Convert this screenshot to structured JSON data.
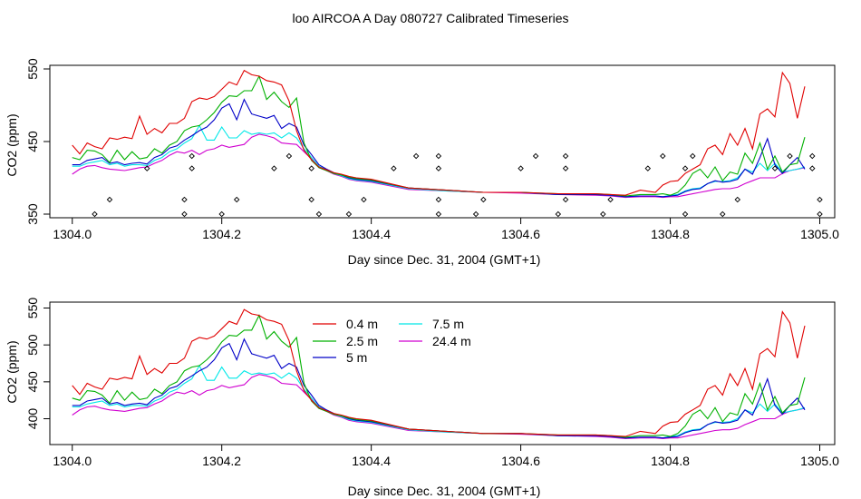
{
  "title": "loo AIRCOA A  Day 080727  Calibrated Timeseries",
  "colors": {
    "0.4 m": "#e00000",
    "2.5 m": "#00b000",
    "5 m": "#0000c8",
    "7.5 m": "#00e8e8",
    "24.4 m": "#d000d0"
  },
  "chart_data": [
    {
      "type": "line",
      "xlabel": "Day since Dec. 31, 2004 (GMT+1)",
      "ylabel": "CO2 (ppm)",
      "xlim": [
        1303.97,
        1305.02
      ],
      "ylim": [
        345,
        555
      ],
      "xticks": [
        "1304.0",
        "1304.2",
        "1304.4",
        "1304.6",
        "1304.8",
        "1305.0"
      ],
      "yticks": [
        "350",
        "450",
        "550"
      ],
      "series": [
        {
          "key": "0.4 m",
          "x": [
            1304.0,
            1304.01,
            1304.02,
            1304.03,
            1304.04,
            1304.05,
            1304.06,
            1304.07,
            1304.08,
            1304.09,
            1304.1,
            1304.11,
            1304.12,
            1304.13,
            1304.14,
            1304.15,
            1304.16,
            1304.17,
            1304.18,
            1304.19,
            1304.2,
            1304.21,
            1304.22,
            1304.23,
            1304.24,
            1304.25,
            1304.26,
            1304.27,
            1304.28,
            1304.29,
            1304.3,
            1304.31,
            1304.32,
            1304.33,
            1304.34,
            1304.35,
            1304.36,
            1304.37,
            1304.38,
            1304.4,
            1304.45,
            1304.5,
            1304.55,
            1304.6,
            1304.65,
            1304.7,
            1304.72,
            1304.74,
            1304.76,
            1304.78,
            1304.79,
            1304.8,
            1304.81,
            1304.82,
            1304.83,
            1304.84,
            1304.85,
            1304.86,
            1304.87,
            1304.88,
            1304.89,
            1304.9,
            1304.91,
            1304.92,
            1304.93,
            1304.94,
            1304.95,
            1304.96,
            1304.97,
            1304.98,
            1304.99
          ],
          "y": [
            445,
            433,
            448,
            443,
            440,
            455,
            453,
            456,
            454,
            485,
            460,
            468,
            462,
            475,
            475,
            482,
            505,
            510,
            508,
            512,
            522,
            532,
            528,
            548,
            542,
            540,
            534,
            532,
            528,
            506,
            465,
            438,
            425,
            415,
            411,
            407,
            405,
            402,
            400,
            398,
            386,
            383,
            380,
            380,
            378,
            378,
            377,
            376,
            383,
            380,
            390,
            395,
            396,
            406,
            412,
            418,
            440,
            445,
            432,
            461,
            445,
            468,
            440,
            488,
            495,
            484,
            545,
            530,
            482,
            526,
            null
          ]
        },
        {
          "key": "2.5 m",
          "x": [
            1304.0,
            1304.01,
            1304.02,
            1304.03,
            1304.04,
            1304.05,
            1304.06,
            1304.07,
            1304.08,
            1304.09,
            1304.1,
            1304.11,
            1304.12,
            1304.13,
            1304.14,
            1304.15,
            1304.16,
            1304.17,
            1304.18,
            1304.19,
            1304.2,
            1304.21,
            1304.22,
            1304.23,
            1304.24,
            1304.25,
            1304.26,
            1304.27,
            1304.28,
            1304.29,
            1304.3,
            1304.31,
            1304.32,
            1304.33,
            1304.34,
            1304.35,
            1304.36,
            1304.37,
            1304.38,
            1304.4,
            1304.45,
            1304.5,
            1304.55,
            1304.6,
            1304.65,
            1304.7,
            1304.72,
            1304.74,
            1304.76,
            1304.78,
            1304.79,
            1304.8,
            1304.81,
            1304.82,
            1304.83,
            1304.84,
            1304.85,
            1304.86,
            1304.87,
            1304.88,
            1304.89,
            1304.9,
            1304.91,
            1304.92,
            1304.93,
            1304.94,
            1304.95,
            1304.96,
            1304.97,
            1304.98,
            1304.99
          ],
          "y": [
            428,
            425,
            438,
            437,
            432,
            421,
            438,
            425,
            436,
            426,
            428,
            440,
            434,
            445,
            450,
            465,
            470,
            472,
            480,
            490,
            504,
            513,
            512,
            520,
            520,
            540,
            508,
            518,
            505,
            497,
            510,
            448,
            424,
            414,
            410,
            406,
            404,
            401,
            399,
            397,
            386,
            383,
            380,
            380,
            378,
            378,
            377,
            375,
            377,
            377,
            378,
            376,
            380,
            390,
            406,
            412,
            400,
            415,
            396,
            408,
            405,
            434,
            420,
            448,
            412,
            430,
            408,
            418,
            420,
            456,
            null
          ]
        },
        {
          "key": "5 m",
          "x": [
            1304.0,
            1304.01,
            1304.02,
            1304.03,
            1304.04,
            1304.05,
            1304.06,
            1304.07,
            1304.08,
            1304.09,
            1304.1,
            1304.11,
            1304.12,
            1304.13,
            1304.14,
            1304.15,
            1304.16,
            1304.17,
            1304.18,
            1304.19,
            1304.2,
            1304.21,
            1304.22,
            1304.23,
            1304.24,
            1304.25,
            1304.26,
            1304.27,
            1304.28,
            1304.29,
            1304.3,
            1304.31,
            1304.32,
            1304.33,
            1304.34,
            1304.35,
            1304.36,
            1304.37,
            1304.38,
            1304.4,
            1304.45,
            1304.5,
            1304.55,
            1304.6,
            1304.65,
            1304.7,
            1304.72,
            1304.74,
            1304.76,
            1304.78,
            1304.79,
            1304.8,
            1304.81,
            1304.82,
            1304.83,
            1304.84,
            1304.85,
            1304.86,
            1304.87,
            1304.88,
            1304.89,
            1304.9,
            1304.91,
            1304.92,
            1304.93,
            1304.94,
            1304.95,
            1304.96,
            1304.97,
            1304.98,
            1304.99
          ],
          "y": [
            418,
            418,
            424,
            426,
            428,
            420,
            422,
            418,
            420,
            421,
            419,
            428,
            432,
            441,
            444,
            452,
            458,
            465,
            470,
            480,
            496,
            502,
            480,
            508,
            488,
            485,
            482,
            486,
            468,
            475,
            470,
            445,
            432,
            418,
            412,
            407,
            404,
            400,
            398,
            396,
            386,
            383,
            380,
            380,
            377,
            377,
            376,
            374,
            375,
            375,
            374,
            375,
            376,
            381,
            384,
            385,
            392,
            396,
            394,
            395,
            398,
            412,
            405,
            428,
            454,
            418,
            406,
            418,
            428,
            412,
            null
          ]
        },
        {
          "key": "7.5 m",
          "x": [
            1304.0,
            1304.01,
            1304.02,
            1304.03,
            1304.04,
            1304.05,
            1304.06,
            1304.07,
            1304.08,
            1304.09,
            1304.1,
            1304.11,
            1304.12,
            1304.13,
            1304.14,
            1304.15,
            1304.16,
            1304.17,
            1304.18,
            1304.19,
            1304.2,
            1304.21,
            1304.22,
            1304.23,
            1304.24,
            1304.25,
            1304.26,
            1304.27,
            1304.28,
            1304.29,
            1304.3,
            1304.31,
            1304.32,
            1304.33,
            1304.34,
            1304.35,
            1304.36,
            1304.37,
            1304.38,
            1304.4,
            1304.45,
            1304.5,
            1304.55,
            1304.6,
            1304.65,
            1304.7,
            1304.72,
            1304.74,
            1304.76,
            1304.78,
            1304.79,
            1304.8,
            1304.81,
            1304.82,
            1304.83,
            1304.84,
            1304.85,
            1304.86,
            1304.87,
            1304.88,
            1304.89,
            1304.9,
            1304.91,
            1304.92,
            1304.93,
            1304.94,
            1304.95,
            1304.96,
            1304.97,
            1304.98,
            1304.99
          ],
          "y": [
            416,
            416,
            420,
            422,
            424,
            418,
            420,
            416,
            418,
            418,
            417,
            424,
            428,
            436,
            440,
            448,
            454,
            472,
            452,
            452,
            470,
            455,
            455,
            465,
            460,
            462,
            460,
            462,
            455,
            462,
            455,
            440,
            428,
            416,
            411,
            406,
            403,
            399,
            397,
            395,
            385,
            382,
            380,
            380,
            377,
            377,
            376,
            374,
            375,
            375,
            374,
            376,
            377,
            382,
            385,
            386,
            392,
            395,
            395,
            396,
            400,
            412,
            408,
            420,
            410,
            420,
            408,
            410,
            412,
            415,
            null
          ]
        },
        {
          "key": "24.4 m",
          "x": [
            1304.0,
            1304.01,
            1304.02,
            1304.03,
            1304.04,
            1304.05,
            1304.06,
            1304.07,
            1304.08,
            1304.09,
            1304.1,
            1304.11,
            1304.12,
            1304.13,
            1304.14,
            1304.15,
            1304.16,
            1304.17,
            1304.18,
            1304.19,
            1304.2,
            1304.21,
            1304.22,
            1304.23,
            1304.24,
            1304.25,
            1304.26,
            1304.27,
            1304.28,
            1304.29,
            1304.3,
            1304.31,
            1304.32,
            1304.33,
            1304.34,
            1304.35,
            1304.36,
            1304.37,
            1304.38,
            1304.4,
            1304.45,
            1304.5,
            1304.55,
            1304.6,
            1304.65,
            1304.7,
            1304.72,
            1304.74,
            1304.76,
            1304.78,
            1304.79,
            1304.8,
            1304.81,
            1304.82,
            1304.83,
            1304.84,
            1304.85,
            1304.86,
            1304.87,
            1304.88,
            1304.89,
            1304.9,
            1304.91,
            1304.92,
            1304.93,
            1304.94,
            1304.95,
            1304.96,
            1304.97,
            1304.98,
            1304.99
          ],
          "y": [
            405,
            412,
            416,
            417,
            414,
            412,
            411,
            410,
            412,
            414,
            415,
            420,
            424,
            431,
            436,
            434,
            438,
            432,
            438,
            440,
            445,
            442,
            444,
            446,
            456,
            460,
            458,
            455,
            448,
            447,
            446,
            436,
            426,
            414,
            410,
            405,
            402,
            398,
            396,
            394,
            384,
            382,
            380,
            379,
            377,
            376,
            375,
            373,
            374,
            374,
            373,
            374,
            374,
            376,
            378,
            380,
            382,
            384,
            385,
            385,
            387,
            392,
            396,
            400,
            400,
            400,
            406,
            410,
            412,
            414,
            null
          ]
        }
      ],
      "markers": {
        "x": [
          1304.03,
          1304.05,
          1304.1,
          1304.15,
          1304.15,
          1304.16,
          1304.16,
          1304.2,
          1304.22,
          1304.27,
          1304.29,
          1304.32,
          1304.32,
          1304.33,
          1304.37,
          1304.39,
          1304.43,
          1304.46,
          1304.49,
          1304.49,
          1304.49,
          1304.49,
          1304.54,
          1304.55,
          1304.6,
          1304.62,
          1304.65,
          1304.66,
          1304.66,
          1304.66,
          1304.71,
          1304.72,
          1304.77,
          1304.79,
          1304.82,
          1304.82,
          1304.83,
          1304.87,
          1304.89,
          1304.94,
          1304.96,
          1304.99,
          1304.99,
          1305.0,
          1305.0
        ],
        "y": [
          350,
          370,
          413,
          350,
          370,
          413,
          430,
          350,
          370,
          413,
          430,
          370,
          413,
          350,
          350,
          370,
          413,
          430,
          350,
          370,
          413,
          430,
          350,
          370,
          413,
          430,
          350,
          370,
          413,
          430,
          350,
          370,
          413,
          430,
          350,
          413,
          430,
          350,
          370,
          413,
          430,
          413,
          430,
          350,
          370
        ]
      }
    },
    {
      "type": "line",
      "xlabel": "Day since Dec. 31, 2004 (GMT+1)",
      "ylabel": "CO2 (ppm)",
      "xlim": [
        1303.97,
        1305.02
      ],
      "ylim": [
        365,
        558
      ],
      "xticks": [
        "1304.0",
        "1304.2",
        "1304.4",
        "1304.6",
        "1304.8",
        "1305.0"
      ],
      "yticks": [
        "400",
        "450",
        "500",
        "550"
      ],
      "legend": [
        {
          "label": "0.4 m",
          "key": "0.4 m"
        },
        {
          "label": "2.5 m",
          "key": "2.5 m"
        },
        {
          "label": "5 m",
          "key": "5 m"
        },
        {
          "label": "7.5 m",
          "key": "7.5 m"
        },
        {
          "label": "24.4 m",
          "key": "24.4 m"
        }
      ],
      "series_same_as_panel": 0
    }
  ]
}
